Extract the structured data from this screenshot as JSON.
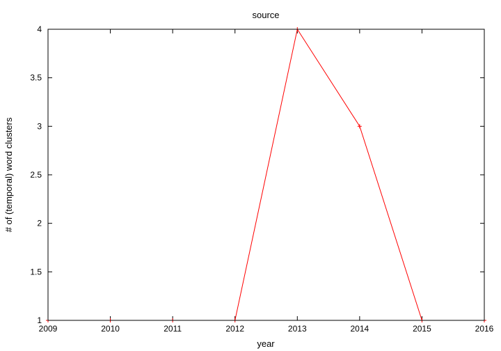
{
  "chart_data": {
    "type": "line",
    "title": "source",
    "xlabel": "year",
    "ylabel": "# of (temporal) word clusters",
    "xlim": [
      2009,
      2016
    ],
    "ylim": [
      1,
      4
    ],
    "x_ticks": [
      2009,
      2010,
      2011,
      2012,
      2013,
      2014,
      2015,
      2016
    ],
    "y_ticks": [
      1,
      1.5,
      2,
      2.5,
      3,
      3.5,
      4
    ],
    "x_tick_labels": [
      "2009",
      "2010",
      "2011",
      "2012",
      "2013",
      "2014",
      "2015",
      "2016"
    ],
    "y_tick_labels": [
      "1",
      "1.5",
      "2",
      "2.5",
      "3",
      "3.5",
      "4"
    ],
    "grid": false,
    "series": [
      {
        "color": "#ff0000",
        "x": [
          2009,
          2010,
          2011,
          2012,
          2013,
          2014,
          2015,
          2016
        ],
        "y": [
          1,
          1,
          1,
          1,
          4,
          3,
          1,
          1
        ]
      }
    ]
  }
}
